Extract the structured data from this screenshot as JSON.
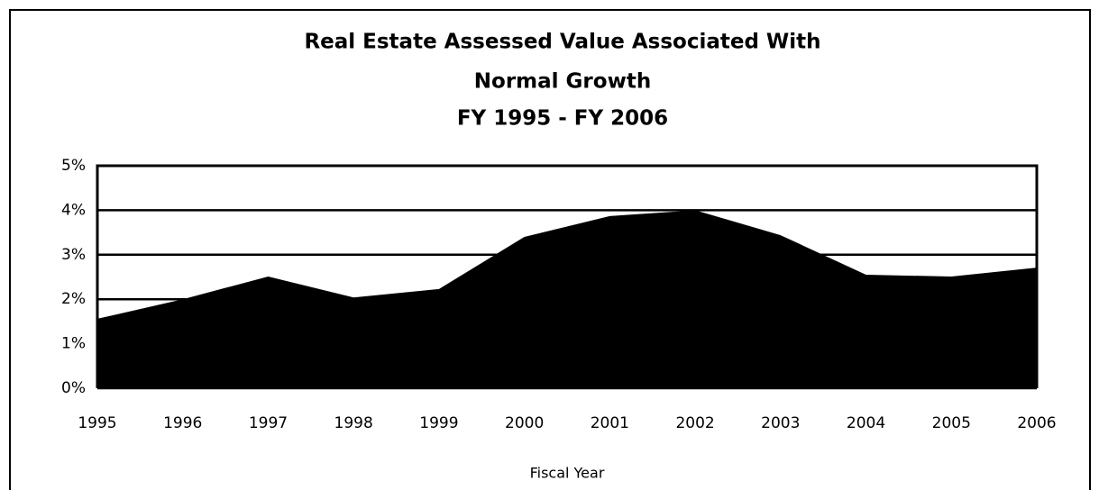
{
  "chart_data": {
    "type": "area",
    "title": [
      "Real Estate Assessed Value Associated With",
      "Normal Growth",
      "FY 1995 - FY 2006"
    ],
    "x_label": "Fiscal Year",
    "categories": [
      "1995",
      "1996",
      "1997",
      "1998",
      "1999",
      "2000",
      "2001",
      "2002",
      "2003",
      "2004",
      "2005",
      "2006"
    ],
    "values": [
      1.56,
      2.0,
      2.51,
      2.04,
      2.23,
      3.4,
      3.87,
      4.0,
      3.44,
      2.55,
      2.51,
      2.71
    ],
    "color": "#000000",
    "ylim": [
      0,
      5
    ],
    "yticks": [
      {
        "value": 0,
        "label": "0%"
      },
      {
        "value": 1,
        "label": "1%"
      },
      {
        "value": 2,
        "label": "2%"
      },
      {
        "value": 3,
        "label": "3%"
      },
      {
        "value": 4,
        "label": "4%"
      },
      {
        "value": 5,
        "label": "5%"
      }
    ],
    "grid": true
  }
}
